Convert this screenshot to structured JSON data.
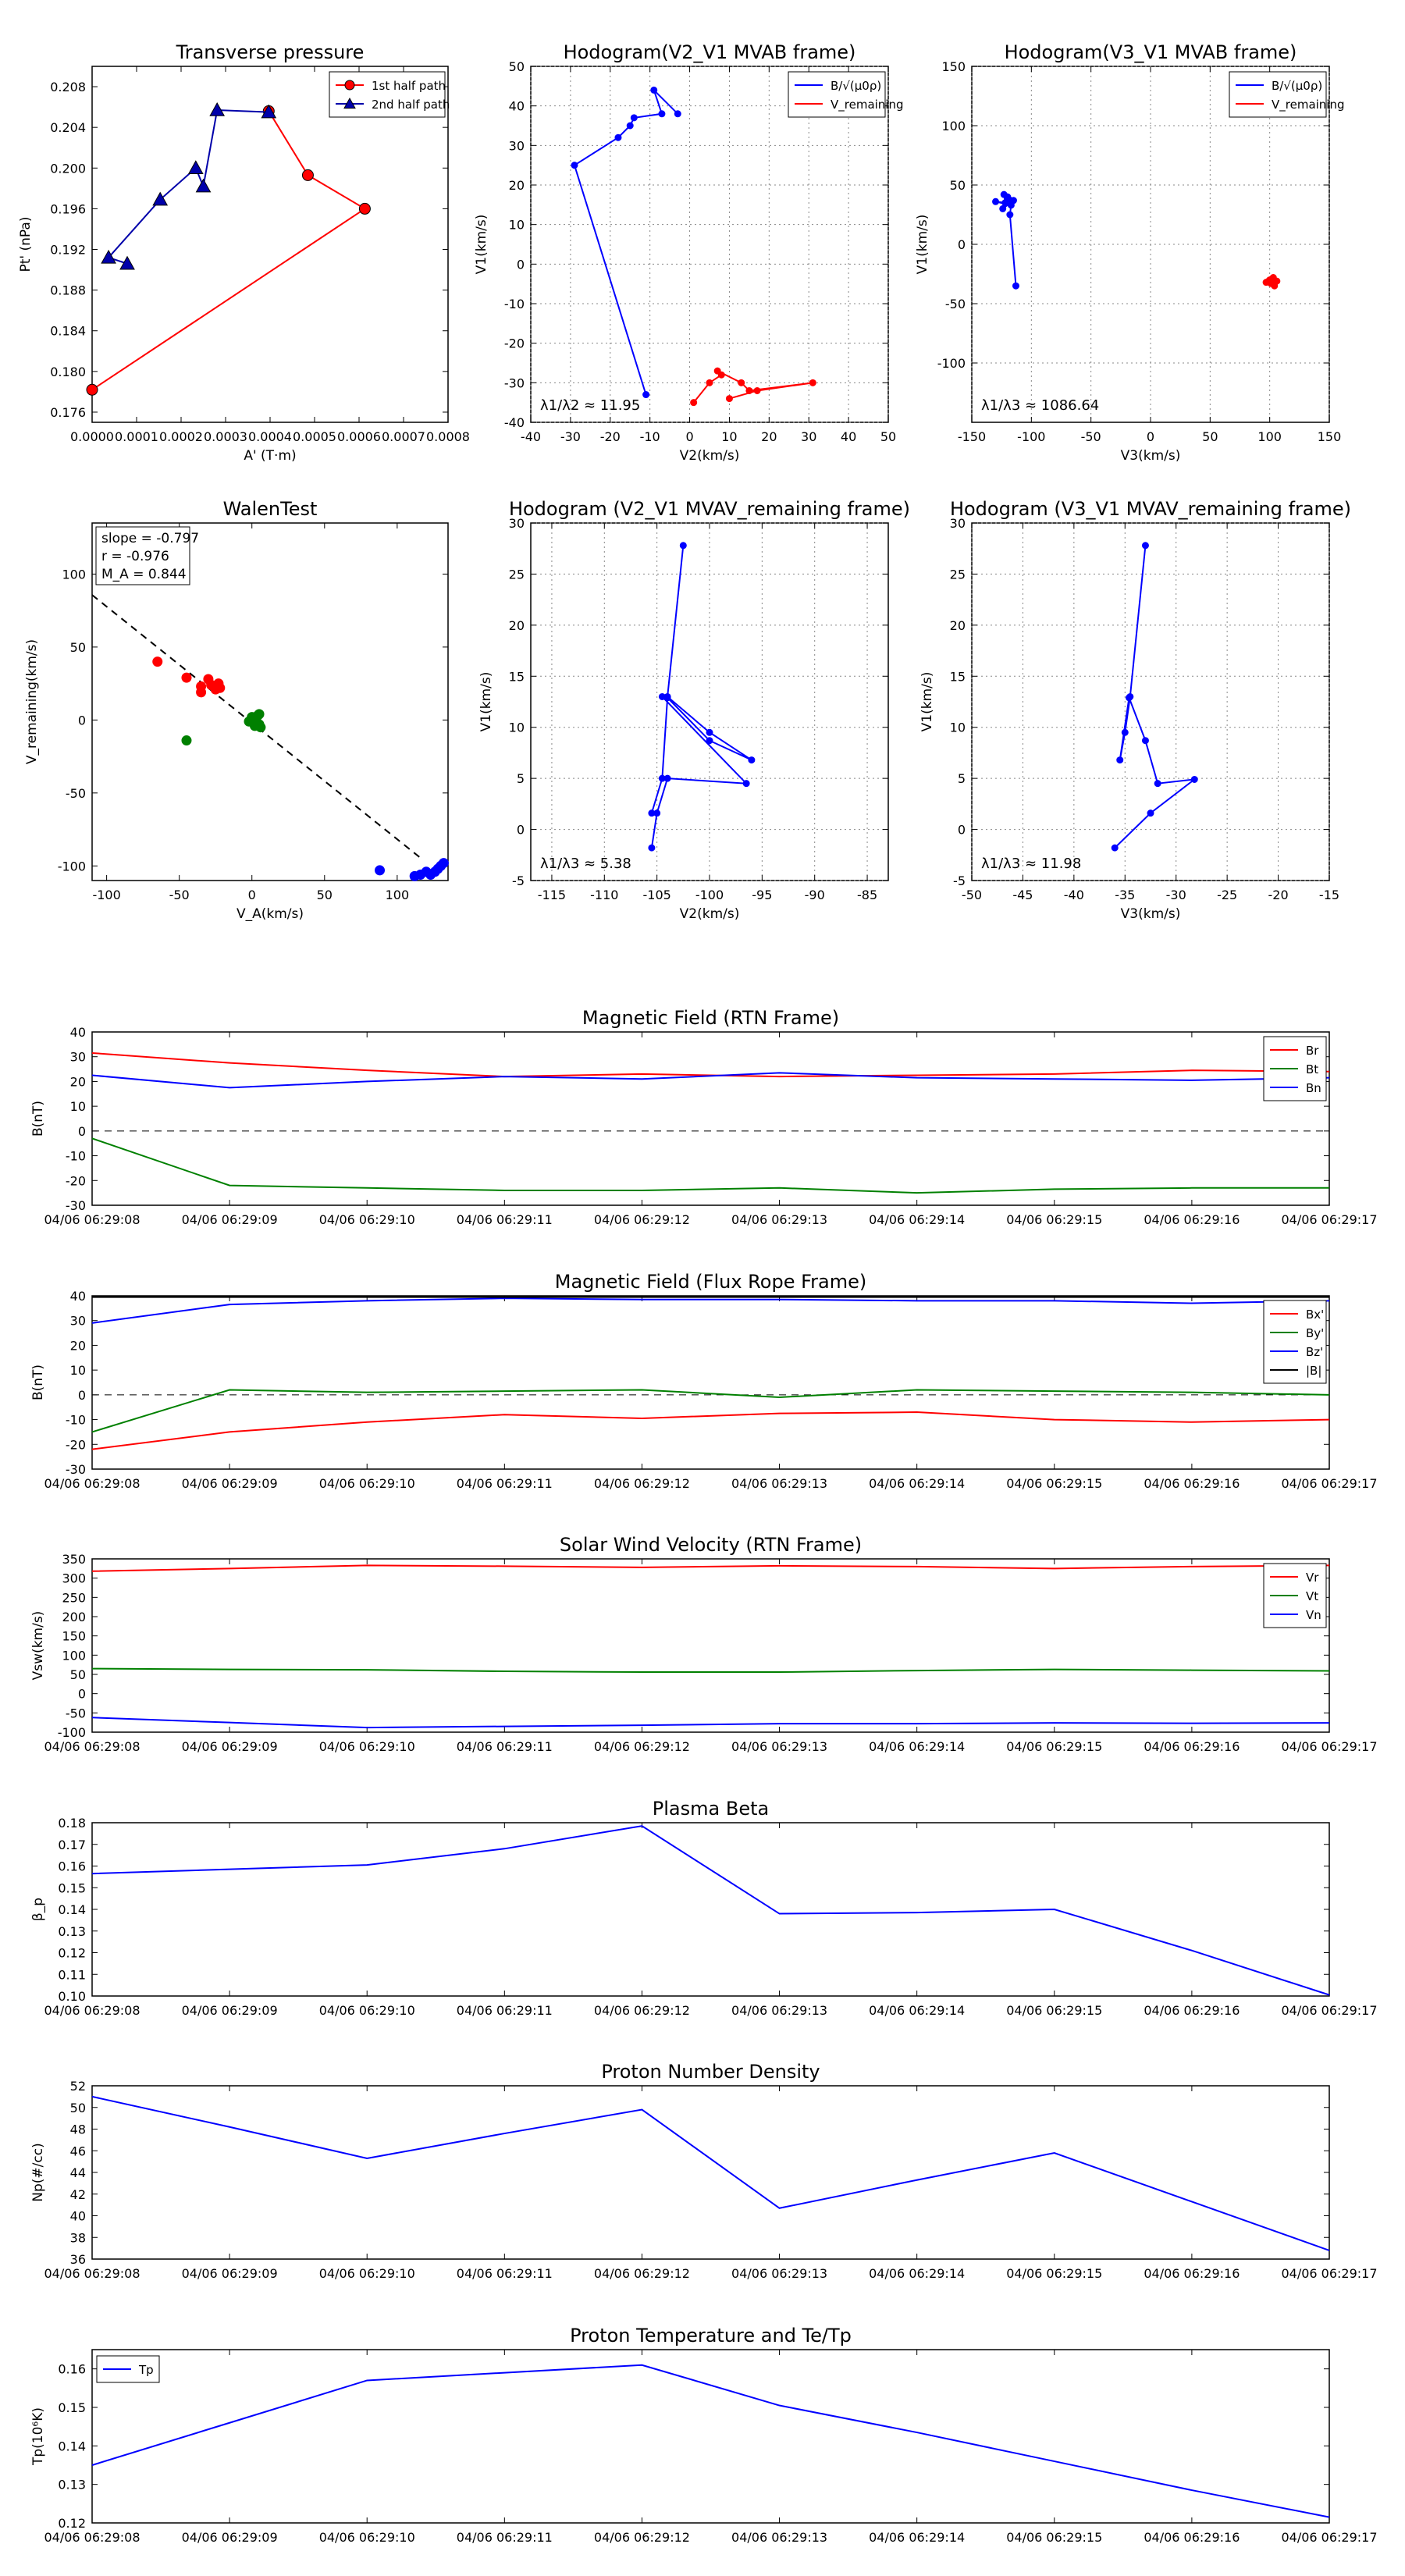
{
  "times": [
    "04/06 06:29:08",
    "04/06 06:29:09",
    "04/06 06:29:10",
    "04/06 06:29:11",
    "04/06 06:29:12",
    "04/06 06:29:13",
    "04/06 06:29:14",
    "04/06 06:29:15",
    "04/06 06:29:16",
    "04/06 06:29:17"
  ],
  "chart_data": [
    {
      "id": "tp",
      "type": "line",
      "title": "Transverse pressure",
      "xlabel": "A' (T·m)",
      "ylabel": "Pt' (nPa)",
      "xlim": [
        0,
        0.0008
      ],
      "ylim": [
        0.175,
        0.21
      ],
      "xticks": [
        0,
        0.0001,
        0.0002,
        0.0003,
        0.0004,
        0.0005,
        0.0006,
        0.0007,
        0.0008
      ],
      "xtick_labels": [
        "0.0000",
        "0.0001",
        "0.0002",
        "0.0003",
        "0.0004",
        "0.0005",
        "0.0006",
        "0.0007",
        "0.0008"
      ],
      "yticks": [
        0.176,
        0.18,
        0.184,
        0.188,
        0.192,
        0.196,
        0.2,
        0.204,
        0.208
      ],
      "ytick_labels": [
        "0.176",
        "0.180",
        "0.184",
        "0.188",
        "0.192",
        "0.196",
        "0.200",
        "0.204",
        "0.208"
      ],
      "grid": false,
      "legend": "top-right",
      "series": [
        {
          "name": "1st half path",
          "color": "#ff0000",
          "marker": "circle",
          "x": [
            0.0,
            0.000613,
            0.000485,
            0.000397
          ],
          "y": [
            0.1782,
            0.196,
            0.1993,
            0.2056
          ]
        },
        {
          "name": "2nd half path",
          "color": "#0000aa",
          "marker": "triangle",
          "x": [
            0.000397,
            0.000281,
            0.00025,
            0.000233,
            0.000153,
            3.7e-05,
            7.9e-05
          ],
          "y": [
            0.2055,
            0.2057,
            0.1982,
            0.2,
            0.1969,
            0.1912,
            0.1906
          ]
        }
      ]
    },
    {
      "id": "h1",
      "type": "line",
      "title": "Hodogram(V2_V1 MVAB frame)",
      "xlabel": "V2(km/s)",
      "ylabel": "V1(km/s)",
      "xlim": [
        -40,
        50
      ],
      "ylim": [
        -40,
        50
      ],
      "xticks": [
        -40,
        -30,
        -20,
        -10,
        0,
        10,
        20,
        30,
        40,
        50
      ],
      "yticks": [
        -40,
        -30,
        -20,
        -10,
        0,
        10,
        20,
        30,
        40,
        50
      ],
      "grid": true,
      "legend": "top-right",
      "annotation": "λ1/λ2 ≈ 11.95",
      "series": [
        {
          "name": "B/√(μ0ρ)",
          "color": "#0000ff",
          "x": [
            -11,
            -29,
            -18,
            -15,
            -14,
            -7,
            -9,
            -3
          ],
          "y": [
            -33,
            25,
            32,
            35,
            37,
            38,
            44,
            38
          ]
        },
        {
          "name": "V_remaining",
          "color": "#ff0000",
          "x": [
            1,
            5,
            8,
            7,
            13,
            15,
            31,
            17,
            10
          ],
          "y": [
            -35,
            -30,
            -28,
            -27,
            -30,
            -32,
            -30,
            -32,
            -34
          ]
        }
      ]
    },
    {
      "id": "h2",
      "type": "line",
      "title": "Hodogram(V3_V1 MVAB frame)",
      "xlabel": "V3(km/s)",
      "ylabel": "V1(km/s)",
      "xlim": [
        -150,
        150
      ],
      "ylim": [
        -150,
        150
      ],
      "xticks": [
        -150,
        -100,
        -50,
        0,
        50,
        100,
        150
      ],
      "yticks": [
        -100,
        -50,
        0,
        50,
        100,
        150
      ],
      "grid": true,
      "legend": "top-right",
      "annotation": "λ1/λ3 ≈ 1086.64",
      "series": [
        {
          "name": "B/√(μ0ρ)",
          "color": "#0000ff",
          "x": [
            -113,
            -118,
            -117,
            -130,
            -122,
            -123,
            -120,
            -115,
            -124,
            -119
          ],
          "y": [
            -35,
            25,
            33,
            36,
            35,
            42,
            40,
            37,
            30,
            38
          ]
        },
        {
          "name": "V_remaining",
          "color": "#ff0000",
          "x": [
            97,
            100,
            103,
            106,
            104,
            101,
            99,
            102
          ],
          "y": [
            -32,
            -30,
            -28,
            -31,
            -35,
            -33,
            -31,
            -29
          ]
        }
      ]
    },
    {
      "id": "walen",
      "type": "scatter",
      "title": "WalenTest",
      "xlabel": "V_A(km/s)",
      "ylabel": "V_remaining(km/s)",
      "xlim": [
        -110,
        135
      ],
      "ylim": [
        -110,
        135
      ],
      "xticks": [
        -100,
        -50,
        0,
        50,
        100
      ],
      "yticks": [
        -100,
        -50,
        0,
        50,
        100
      ],
      "grid": false,
      "stats": [
        "slope = -0.797",
        "r = -0.976",
        "M_A = 0.844"
      ],
      "fit_line": {
        "slope": -0.797,
        "intercept": -2
      },
      "series": [
        {
          "name": "red",
          "color": "#ff0000",
          "x": [
            -65,
            -45,
            -35,
            -35,
            -30,
            -28,
            -25,
            -23,
            -22
          ],
          "y": [
            40,
            29,
            23,
            19,
            28,
            24,
            21,
            25,
            22
          ]
        },
        {
          "name": "green",
          "color": "#008000",
          "x": [
            -45,
            -2,
            0,
            2,
            3,
            4,
            5,
            5,
            6
          ],
          "y": [
            -14,
            -1,
            2,
            -4,
            -3,
            3,
            -3,
            4,
            -5
          ]
        },
        {
          "name": "blue",
          "color": "#0000ff",
          "x": [
            88,
            112,
            116,
            120,
            123,
            126,
            128,
            130,
            132
          ],
          "y": [
            -103,
            -107,
            -106,
            -104,
            -106,
            -104,
            -102,
            -100,
            -98
          ]
        }
      ]
    },
    {
      "id": "h3",
      "type": "line",
      "title": "Hodogram (V2_V1 MVAV_remaining frame)",
      "xlabel": "V2(km/s)",
      "ylabel": "V1(km/s)",
      "xlim": [
        -117,
        -83
      ],
      "ylim": [
        -5,
        30
      ],
      "xticks": [
        -115,
        -110,
        -105,
        -100,
        -95,
        -90,
        -85
      ],
      "yticks": [
        -5,
        0,
        5,
        10,
        15,
        20,
        25,
        30
      ],
      "grid": true,
      "annotation": "λ1/λ3 ≈ 5.38",
      "series": [
        {
          "name": "blue",
          "color": "#0000ff",
          "x": [
            -102.5,
            -104,
            -100,
            -96,
            -100,
            -104,
            -104.5,
            -105.5
          ],
          "y": [
            27.8,
            13,
            9.5,
            6.8,
            8.7,
            12.9,
            5,
            1.6
          ]
        }
      ],
      "extra_lines": [
        {
          "x": [
            -104.5,
            -96.5,
            -104,
            -105,
            -105.5
          ],
          "y": [
            13,
            4.5,
            5,
            1.6,
            -1.8
          ]
        }
      ]
    },
    {
      "id": "h4",
      "type": "line",
      "title": "Hodogram (V3_V1 MVAV_remaining frame)",
      "xlabel": "V3(km/s)",
      "ylabel": "V1(km/s)",
      "xlim": [
        -50,
        -15
      ],
      "ylim": [
        -5,
        30
      ],
      "xticks": [
        -50,
        -45,
        -40,
        -35,
        -30,
        -25,
        -20,
        -15
      ],
      "yticks": [
        -5,
        0,
        5,
        10,
        15,
        20,
        25,
        30
      ],
      "grid": true,
      "annotation": "λ1/λ3 ≈ 11.98",
      "series": [
        {
          "name": "blue",
          "color": "#0000ff",
          "x": [
            -33,
            -34.5,
            -35,
            -35.5,
            -34.6,
            -33,
            -31.8,
            -28.2,
            -32.5,
            -36
          ],
          "y": [
            27.8,
            13,
            9.5,
            6.8,
            12.9,
            8.7,
            4.5,
            4.9,
            1.6,
            -1.8
          ]
        }
      ]
    },
    {
      "id": "ts1",
      "type": "line",
      "title": "Magnetic Field (RTN Frame)",
      "ylabel": "B(nT)",
      "ylim": [
        -30,
        40
      ],
      "yticks": [
        -30,
        -20,
        -10,
        0,
        10,
        20,
        30,
        40
      ],
      "zero_line": true,
      "legend": "top-right",
      "series": [
        {
          "name": "Br",
          "color": "#ff0000",
          "values": [
            31.5,
            27.5,
            24.5,
            22,
            23,
            22,
            22.5,
            23,
            24.5,
            24
          ]
        },
        {
          "name": "Bt",
          "color": "#008000",
          "values": [
            -3,
            -22,
            -23,
            -24,
            -24,
            -23,
            -25,
            -23.5,
            -23,
            -23
          ]
        },
        {
          "name": "Bn",
          "color": "#0000ff",
          "values": [
            22.5,
            17.5,
            20,
            22,
            21,
            23.5,
            21.5,
            21,
            20.5,
            21.5
          ]
        }
      ]
    },
    {
      "id": "ts2",
      "type": "line",
      "title": "Magnetic Field (Flux Rope Frame)",
      "ylabel": "B(nT)",
      "ylim": [
        -30,
        40
      ],
      "yticks": [
        -30,
        -20,
        -10,
        0,
        10,
        20,
        30,
        40
      ],
      "zero_line": true,
      "legend": "top-right",
      "series": [
        {
          "name": "Bx'",
          "color": "#ff0000",
          "values": [
            -22,
            -15,
            -11,
            -8,
            -9.5,
            -7.5,
            -7,
            -10,
            -11,
            -10
          ]
        },
        {
          "name": "By'",
          "color": "#008000",
          "values": [
            -15,
            2,
            1,
            1.5,
            2,
            -1,
            2,
            1.5,
            1,
            0
          ]
        },
        {
          "name": "Bz'",
          "color": "#0000ff",
          "values": [
            29,
            36.5,
            38,
            39,
            38.5,
            38.5,
            38,
            38,
            37,
            38
          ]
        },
        {
          "name": "|B|",
          "color": "#000000",
          "values": [
            39.5,
            39.5,
            39.5,
            39.5,
            39.5,
            39.5,
            39.5,
            39.5,
            39.5,
            39.5
          ]
        }
      ]
    },
    {
      "id": "ts3",
      "type": "line",
      "title": "Solar Wind Velocity (RTN Frame)",
      "ylabel": "Vsw(km/s)",
      "ylim": [
        -100,
        350
      ],
      "yticks": [
        -100,
        -50,
        0,
        50,
        100,
        150,
        200,
        250,
        300,
        350
      ],
      "legend": "top-right",
      "series": [
        {
          "name": "Vr",
          "color": "#ff0000",
          "values": [
            318,
            325,
            333,
            331,
            328,
            332,
            330,
            325,
            330,
            333
          ]
        },
        {
          "name": "Vt",
          "color": "#008000",
          "values": [
            65,
            63,
            62,
            58,
            56,
            56,
            60,
            63,
            61,
            59
          ]
        },
        {
          "name": "Vn",
          "color": "#0000ff",
          "values": [
            -62,
            -75,
            -88,
            -85,
            -82,
            -78,
            -78,
            -76,
            -77,
            -76
          ]
        }
      ]
    },
    {
      "id": "ts4",
      "type": "line",
      "title": "Plasma Beta",
      "ylabel": "β_p",
      "ylim": [
        0.1,
        0.18
      ],
      "yticks": [
        0.1,
        0.11,
        0.12,
        0.13,
        0.14,
        0.15,
        0.16,
        0.17,
        0.18
      ],
      "ytick_labels": [
        "0.10",
        "0.11",
        "0.12",
        "0.13",
        "0.14",
        "0.15",
        "0.16",
        "0.17",
        "0.18"
      ],
      "series": [
        {
          "name": "beta",
          "color": "#0000ff",
          "values": [
            0.1565,
            0.1585,
            0.1605,
            0.168,
            0.1785,
            0.138,
            0.1385,
            0.14,
            0.121,
            0.1005
          ]
        }
      ]
    },
    {
      "id": "ts5",
      "type": "line",
      "title": "Proton Number Density",
      "ylabel": "Np(#/cc)",
      "ylim": [
        36,
        52
      ],
      "yticks": [
        36,
        38,
        40,
        42,
        44,
        46,
        48,
        50,
        52
      ],
      "series": [
        {
          "name": "Np",
          "color": "#0000ff",
          "values": [
            51,
            48.2,
            45.3,
            47.6,
            49.8,
            40.7,
            43.3,
            45.8,
            41.3,
            36.8
          ]
        }
      ]
    },
    {
      "id": "ts6",
      "type": "line",
      "title": "Proton Temperature and Te/Tp",
      "ylabel": "Tp(10⁶K)",
      "ylim": [
        0.12,
        0.165
      ],
      "yticks": [
        0.12,
        0.13,
        0.14,
        0.15,
        0.16
      ],
      "ytick_labels": [
        "0.12",
        "0.13",
        "0.14",
        "0.15",
        "0.16"
      ],
      "legend": "top-left",
      "series": [
        {
          "name": "Tp",
          "color": "#0000ff",
          "values": [
            0.135,
            0.146,
            0.157,
            0.159,
            0.161,
            0.1505,
            0.1435,
            0.136,
            0.1285,
            0.1215
          ]
        }
      ]
    }
  ]
}
